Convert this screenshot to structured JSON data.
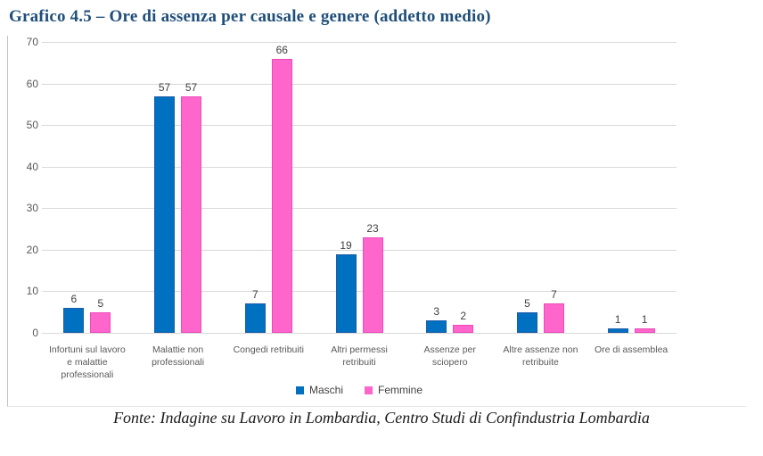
{
  "title": "Grafico 4.5 – Ore di assenza per causale e genere (addetto medio)",
  "source": "Fonte: Indagine su Lavoro in Lombardia, Centro Studi di Confindustria Lombardia",
  "colors": {
    "title_text": "#1F4E79",
    "maschi_fill": "#0070C0",
    "maschi_border": "#1C5CA8",
    "femmine_fill": "#FF66CC",
    "femmine_border": "#ED49BB",
    "gridline": "#D9D9D9",
    "axis_text": "#595959",
    "value_text": "#404040"
  },
  "chart_data": {
    "type": "bar",
    "title": "Grafico 4.5 – Ore di assenza per causale e genere (addetto medio)",
    "categories": [
      "Infortuni sul lavoro e malattie professionali",
      "Malattie non professionali",
      "Congedi retribuiti",
      "Altri permessi retribuiti",
      "Assenze per sciopero",
      "Altre assenze non retribuite",
      "Ore di assemblea"
    ],
    "category_label_lines": [
      [
        "Infortuni sul lavoro",
        "e malattie",
        "professionali"
      ],
      [
        "Malattie non",
        "professionali"
      ],
      [
        "Congedi retribuiti"
      ],
      [
        "Altri permessi",
        "retribuiti"
      ],
      [
        "Assenze per",
        "sciopero"
      ],
      [
        "Altre assenze non",
        "retribuite"
      ],
      [
        "Ore di assemblea"
      ]
    ],
    "series": [
      {
        "name": "Maschi",
        "color": "#0070C0",
        "values": [
          6,
          57,
          7,
          19,
          3,
          5,
          1
        ]
      },
      {
        "name": "Femmine",
        "color": "#FF66CC",
        "values": [
          5,
          57,
          66,
          23,
          2,
          7,
          1
        ]
      }
    ],
    "xlabel": "",
    "ylabel": "",
    "ylim": [
      0,
      70
    ],
    "ytick_interval": 10,
    "yticks": [
      "0",
      "10",
      "20",
      "30",
      "40",
      "50",
      "60",
      "70"
    ],
    "grid": true,
    "data_labels": true,
    "legend_position": "bottom"
  }
}
